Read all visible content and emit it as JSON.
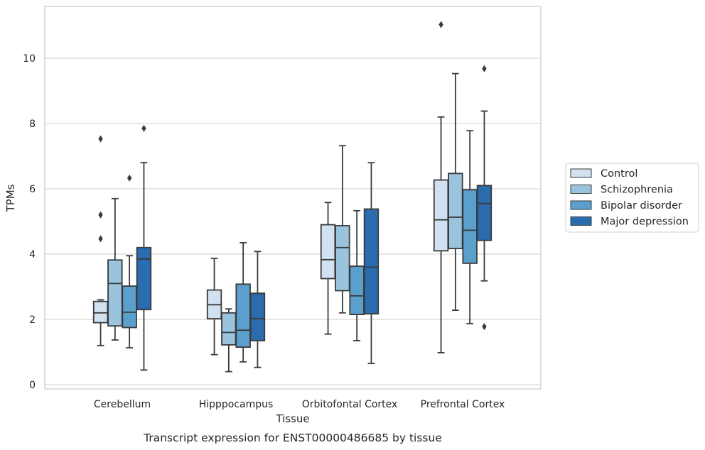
{
  "caption": "Transcript expression for ENST00000486685 by tissue",
  "chart_data": {
    "type": "boxplot",
    "xlabel": "Tissue",
    "ylabel": "TPMs",
    "ylim": [
      -0.1,
      11.5
    ],
    "yticks": [
      0,
      2,
      4,
      6,
      8,
      10
    ],
    "grid": "horizontal",
    "legend_position": "right",
    "categories": [
      "Cerebellum",
      "Hipppocampus",
      "Orbitofontal Cortex",
      "Prefrontal Cortex"
    ],
    "series": [
      {
        "name": "Control",
        "color": "#d1e1f0",
        "boxes": [
          {
            "whislo": 1.2,
            "q1": 1.9,
            "med": 2.2,
            "q3": 2.55,
            "whishi": 2.6,
            "fliers": [
              4.47,
              5.2,
              7.53
            ]
          },
          {
            "whislo": 0.92,
            "q1": 2.02,
            "med": 2.45,
            "q3": 2.9,
            "whishi": 3.87,
            "fliers": []
          },
          {
            "whislo": 1.55,
            "q1": 3.25,
            "med": 3.83,
            "q3": 4.9,
            "whishi": 5.58,
            "fliers": []
          },
          {
            "whislo": 0.98,
            "q1": 4.1,
            "med": 5.05,
            "q3": 6.27,
            "whishi": 8.2,
            "fliers": [
              11.03
            ]
          }
        ]
      },
      {
        "name": "Schizophrenia",
        "color": "#9ac4de",
        "boxes": [
          {
            "whislo": 1.37,
            "q1": 1.8,
            "med": 3.1,
            "q3": 3.82,
            "whishi": 5.7,
            "fliers": []
          },
          {
            "whislo": 0.4,
            "q1": 1.22,
            "med": 1.6,
            "q3": 2.2,
            "whishi": 2.32,
            "fliers": []
          },
          {
            "whislo": 2.2,
            "q1": 2.88,
            "med": 4.2,
            "q3": 4.87,
            "whishi": 7.32,
            "fliers": []
          },
          {
            "whislo": 2.28,
            "q1": 4.17,
            "med": 5.13,
            "q3": 6.47,
            "whishi": 9.53,
            "fliers": []
          }
        ]
      },
      {
        "name": "Bipolar disorder",
        "color": "#5ba0cc",
        "boxes": [
          {
            "whislo": 1.13,
            "q1": 1.75,
            "med": 2.22,
            "q3": 3.02,
            "whishi": 3.95,
            "fliers": [
              6.33
            ]
          },
          {
            "whislo": 0.7,
            "q1": 1.15,
            "med": 1.67,
            "q3": 3.08,
            "whishi": 4.35,
            "fliers": []
          },
          {
            "whislo": 1.35,
            "q1": 2.15,
            "med": 2.72,
            "q3": 3.63,
            "whishi": 5.33,
            "fliers": []
          },
          {
            "whislo": 1.87,
            "q1": 3.72,
            "med": 4.73,
            "q3": 5.97,
            "whishi": 7.78,
            "fliers": []
          }
        ]
      },
      {
        "name": "Major depression",
        "color": "#2a6cad",
        "boxes": [
          {
            "whislo": 0.45,
            "q1": 2.3,
            "med": 3.85,
            "q3": 4.2,
            "whishi": 6.8,
            "fliers": [
              7.85
            ]
          },
          {
            "whislo": 0.53,
            "q1": 1.35,
            "med": 2.02,
            "q3": 2.8,
            "whishi": 4.08,
            "fliers": []
          },
          {
            "whislo": 0.65,
            "q1": 2.17,
            "med": 3.6,
            "q3": 5.38,
            "whishi": 6.8,
            "fliers": []
          },
          {
            "whislo": 3.18,
            "q1": 4.42,
            "med": 5.55,
            "q3": 6.1,
            "whishi": 8.38,
            "fliers": [
              1.78,
              9.68
            ]
          }
        ]
      }
    ]
  }
}
